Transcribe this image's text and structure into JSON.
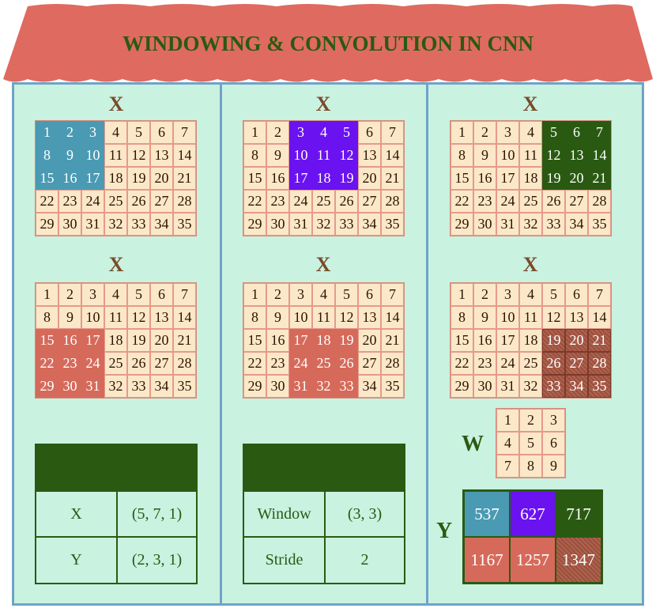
{
  "title": "WINDOWING & CONVOLUTION IN CNN",
  "x_label": "X",
  "x_matrix": [
    [
      1,
      2,
      3,
      4,
      5,
      6,
      7
    ],
    [
      8,
      9,
      10,
      11,
      12,
      13,
      14
    ],
    [
      15,
      16,
      17,
      18,
      19,
      20,
      21
    ],
    [
      22,
      23,
      24,
      25,
      26,
      27,
      28
    ],
    [
      29,
      30,
      31,
      32,
      33,
      34,
      35
    ]
  ],
  "windows": [
    {
      "rows": [
        0,
        1,
        2
      ],
      "cols": [
        0,
        1,
        2
      ],
      "color": "blue"
    },
    {
      "rows": [
        0,
        1,
        2
      ],
      "cols": [
        2,
        3,
        4
      ],
      "color": "purple"
    },
    {
      "rows": [
        0,
        1,
        2
      ],
      "cols": [
        4,
        5,
        6
      ],
      "color": "green"
    },
    {
      "rows": [
        2,
        3,
        4
      ],
      "cols": [
        0,
        1,
        2
      ],
      "color": "red"
    },
    {
      "rows": [
        2,
        3,
        4
      ],
      "cols": [
        2,
        3,
        4
      ],
      "color": "red"
    },
    {
      "rows": [
        2,
        3,
        4
      ],
      "cols": [
        4,
        5,
        6
      ],
      "color": "dkred"
    }
  ],
  "shape_table": {
    "rows": [
      {
        "label": "X",
        "value": "(5, 7, 1)"
      },
      {
        "label": "Y",
        "value": "(2, 3, 1)"
      }
    ]
  },
  "params_table": {
    "rows": [
      {
        "label": "Window",
        "value": "(3, 3)"
      },
      {
        "label": "Stride",
        "value": "2"
      }
    ]
  },
  "w_label": "W",
  "w_matrix": [
    [
      1,
      2,
      3
    ],
    [
      4,
      5,
      6
    ],
    [
      7,
      8,
      9
    ]
  ],
  "y_label": "Y",
  "y_matrix": [
    [
      537,
      627,
      717
    ],
    [
      1167,
      1257,
      1347
    ]
  ],
  "y_colors": [
    [
      "#4a9ab3",
      "#6a12f0",
      "#2a5a12"
    ],
    [
      "#d66a5a",
      "#d66a5a",
      "#9e4e3a"
    ]
  ],
  "colors": {
    "roof": "#df6a60",
    "wall": "#c9f2e0",
    "frame": "#6fa3c9",
    "title": "#2a5a10",
    "x_label": "#7a4a2a"
  }
}
